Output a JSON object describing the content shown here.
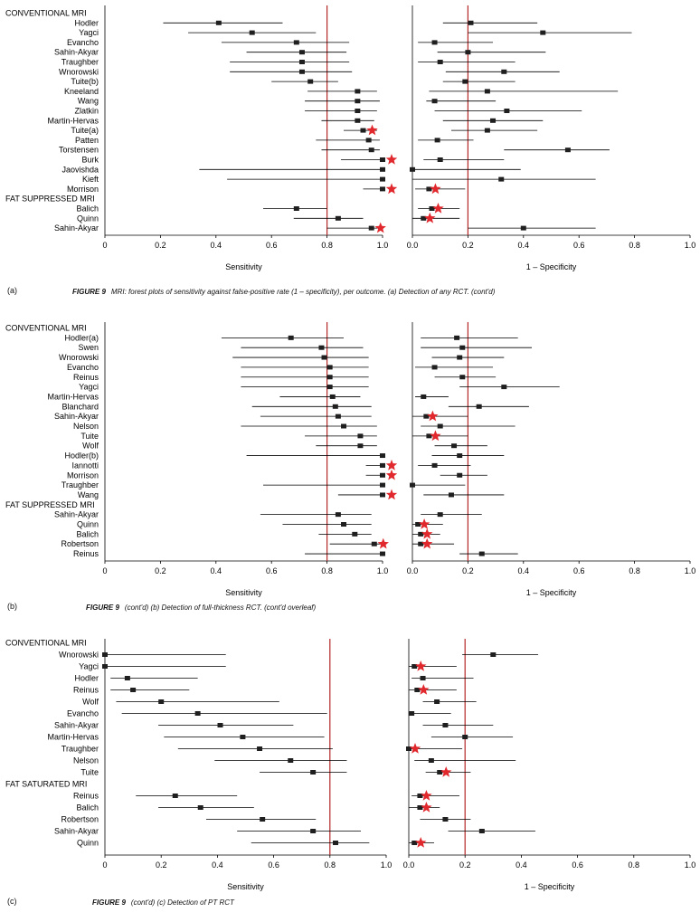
{
  "colors": {
    "reference_line": "#b42828",
    "star": "#e0282d",
    "marker": "#1f1f1f",
    "ci": "#000000"
  },
  "panels": [
    {
      "label": "(a)",
      "figure": "FIGURE 9",
      "caption": "MRI: forest plots of sensitivity against false-positive rate (1 – specificity), per outcome. (a) Detection of any RCT. (cont'd)",
      "chart_data": {
        "type": "forest",
        "left_axis": {
          "label": "Sensitivity",
          "xlim": [
            0,
            1.0
          ],
          "ticks": [
            "0",
            "0.2",
            "0.4",
            "0.6",
            "0.8",
            "1.0"
          ],
          "reference_line": 0.8
        },
        "right_axis": {
          "label": "1 – Specificity",
          "xlim": [
            0,
            1.0
          ],
          "ticks": [
            "0.0",
            "0.2",
            "0.4",
            "0.6",
            "0.8",
            "1.0"
          ],
          "reference_line": 0.2
        },
        "rows": [
          {
            "label": "CONVENTIONAL MRI",
            "header": true
          },
          {
            "label": "Hodler",
            "sens": [
              0.41,
              0.21,
              0.64
            ],
            "fpr": [
              0.21,
              0.11,
              0.45
            ]
          },
          {
            "label": "Yagci",
            "sens": [
              0.53,
              0.3,
              0.76
            ],
            "fpr": [
              0.47,
              0.2,
              0.79
            ]
          },
          {
            "label": "Evancho",
            "sens": [
              0.69,
              0.42,
              0.88
            ],
            "fpr": [
              0.08,
              0.02,
              0.29
            ]
          },
          {
            "label": "Sahin-Akyar",
            "sens": [
              0.71,
              0.51,
              0.87
            ],
            "fpr": [
              0.2,
              0.09,
              0.48
            ]
          },
          {
            "label": "Traughber",
            "sens": [
              0.71,
              0.45,
              0.88
            ],
            "fpr": [
              0.1,
              0.02,
              0.37
            ]
          },
          {
            "label": "Wnorowski",
            "sens": [
              0.71,
              0.45,
              0.89
            ],
            "fpr": [
              0.33,
              0.12,
              0.53
            ]
          },
          {
            "label": "Tuite(b)",
            "sens": [
              0.74,
              0.6,
              0.84
            ],
            "fpr": [
              0.19,
              0.11,
              0.37
            ]
          },
          {
            "label": "Kneeland",
            "sens": [
              0.91,
              0.73,
              0.98
            ],
            "fpr": [
              0.27,
              0.06,
              0.74
            ]
          },
          {
            "label": "Wang",
            "sens": [
              0.91,
              0.72,
              0.99
            ],
            "fpr": [
              0.08,
              0.05,
              0.3
            ]
          },
          {
            "label": "Zlatkin",
            "sens": [
              0.91,
              0.72,
              0.98
            ],
            "fpr": [
              0.34,
              0.08,
              0.61
            ]
          },
          {
            "label": "Martin-Hervas",
            "sens": [
              0.91,
              0.78,
              0.97
            ],
            "fpr": [
              0.29,
              0.11,
              0.47
            ]
          },
          {
            "label": "Tuite(a)",
            "sens": [
              0.93,
              0.86,
              0.98
            ],
            "fpr": [
              0.27,
              0.14,
              0.45
            ],
            "star": "sens"
          },
          {
            "label": "Patten",
            "sens": [
              0.95,
              0.76,
              0.99
            ],
            "fpr": [
              0.09,
              0.02,
              0.22
            ]
          },
          {
            "label": "Torstensen",
            "sens": [
              0.96,
              0.78,
              0.99
            ],
            "fpr": [
              0.56,
              0.33,
              0.71
            ]
          },
          {
            "label": "Burk",
            "sens": [
              1.0,
              0.85,
              1.0
            ],
            "fpr": [
              0.1,
              0.04,
              0.33
            ],
            "star": "sens"
          },
          {
            "label": "Jaovishda",
            "sens": [
              1.0,
              0.34,
              1.0
            ],
            "fpr": [
              0.0,
              0.0,
              0.39
            ]
          },
          {
            "label": "Kieft",
            "sens": [
              1.0,
              0.44,
              1.0
            ],
            "fpr": [
              0.32,
              0.0,
              0.66
            ]
          },
          {
            "label": "Morrison",
            "sens": [
              1.0,
              0.93,
              1.0
            ],
            "fpr": [
              0.06,
              0.01,
              0.19
            ],
            "star": "both"
          },
          {
            "label": "FAT SUPPRESSED MRI",
            "header": true
          },
          {
            "label": "Balich",
            "sens": [
              0.69,
              0.57,
              0.8
            ],
            "fpr": [
              0.07,
              0.02,
              0.17
            ],
            "star": "fpr"
          },
          {
            "label": "Quinn",
            "sens": [
              0.84,
              0.68,
              0.93
            ],
            "fpr": [
              0.04,
              0.0,
              0.17
            ],
            "star": "fpr"
          },
          {
            "label": "Sahin-Akyar",
            "sens": [
              0.96,
              0.8,
              0.99
            ],
            "fpr": [
              0.4,
              0.2,
              0.66
            ],
            "star": "sens"
          }
        ]
      }
    },
    {
      "label": "(b)",
      "figure": "FIGURE 9",
      "caption": "(cont'd)  (b) Detection of full-thickness RCT. (cont'd overleaf)",
      "chart_data": {
        "type": "forest",
        "left_axis": {
          "label": "Sensitivity",
          "xlim": [
            0,
            1.0
          ],
          "ticks": [
            "0",
            "0.2",
            "0.4",
            "0.6",
            "0.8",
            "1.0"
          ],
          "reference_line": 0.8
        },
        "right_axis": {
          "label": "1 – Specificity",
          "xlim": [
            0,
            1.0
          ],
          "ticks": [
            "0.0",
            "0.2",
            "0.4",
            "0.6",
            "0.8",
            "1.0"
          ],
          "reference_line": 0.2
        },
        "rows": [
          {
            "label": "CONVENTIONAL MRI",
            "header": true
          },
          {
            "label": "Hodler(a)",
            "sens": [
              0.67,
              0.42,
              0.86
            ],
            "fpr": [
              0.16,
              0.03,
              0.38
            ]
          },
          {
            "label": "Swen",
            "sens": [
              0.78,
              0.49,
              0.93
            ],
            "fpr": [
              0.18,
              0.03,
              0.43
            ]
          },
          {
            "label": "Wnorowski",
            "sens": [
              0.79,
              0.46,
              0.95
            ],
            "fpr": [
              0.17,
              0.07,
              0.33
            ]
          },
          {
            "label": "Evancho",
            "sens": [
              0.81,
              0.49,
              0.95
            ],
            "fpr": [
              0.08,
              0.01,
              0.29
            ]
          },
          {
            "label": "Reinus",
            "sens": [
              0.81,
              0.49,
              0.95
            ],
            "fpr": [
              0.18,
              0.08,
              0.3
            ]
          },
          {
            "label": "Yagci",
            "sens": [
              0.81,
              0.49,
              0.95
            ],
            "fpr": [
              0.33,
              0.17,
              0.53
            ]
          },
          {
            "label": "Martin-Hervas",
            "sens": [
              0.82,
              0.63,
              0.92
            ],
            "fpr": [
              0.04,
              0.01,
              0.13
            ]
          },
          {
            "label": "Blanchard",
            "sens": [
              0.83,
              0.53,
              0.96
            ],
            "fpr": [
              0.24,
              0.13,
              0.42
            ]
          },
          {
            "label": "Sahin-Akyar",
            "sens": [
              0.84,
              0.56,
              0.96
            ],
            "fpr": [
              0.05,
              0.0,
              0.2
            ],
            "star": "fpr"
          },
          {
            "label": "Nelson",
            "sens": [
              0.86,
              0.49,
              0.98
            ],
            "fpr": [
              0.1,
              0.03,
              0.37
            ]
          },
          {
            "label": "Tuite",
            "sens": [
              0.92,
              0.72,
              0.98
            ],
            "fpr": [
              0.06,
              0.0,
              0.2
            ],
            "star": "fpr"
          },
          {
            "label": "Wolf",
            "sens": [
              0.92,
              0.76,
              0.98
            ],
            "fpr": [
              0.15,
              0.08,
              0.27
            ]
          },
          {
            "label": "Hodler(b)",
            "sens": [
              1.0,
              0.51,
              1.0
            ],
            "fpr": [
              0.17,
              0.07,
              0.33
            ]
          },
          {
            "label": "Iannotti",
            "sens": [
              1.0,
              0.94,
              1.0
            ],
            "fpr": [
              0.08,
              0.02,
              0.21
            ],
            "star": "sens"
          },
          {
            "label": "Morrison",
            "sens": [
              1.0,
              0.94,
              1.0
            ],
            "fpr": [
              0.17,
              0.1,
              0.27
            ],
            "star": "sens"
          },
          {
            "label": "Traughber",
            "sens": [
              1.0,
              0.57,
              1.0
            ],
            "fpr": [
              0.0,
              0.0,
              0.19
            ]
          },
          {
            "label": "Wang",
            "sens": [
              1.0,
              0.84,
              1.0
            ],
            "fpr": [
              0.14,
              0.04,
              0.33
            ],
            "star": "sens"
          },
          {
            "label": "FAT SUPPRESSED MRI",
            "header": true
          },
          {
            "label": "Sahin-Akyar",
            "sens": [
              0.84,
              0.56,
              0.96
            ],
            "fpr": [
              0.1,
              0.03,
              0.25
            ]
          },
          {
            "label": "Quinn",
            "sens": [
              0.86,
              0.64,
              0.96
            ],
            "fpr": [
              0.02,
              0.0,
              0.11
            ],
            "star": "fpr"
          },
          {
            "label": "Balich",
            "sens": [
              0.9,
              0.77,
              0.96
            ],
            "fpr": [
              0.03,
              0.0,
              0.1
            ],
            "star": "fpr"
          },
          {
            "label": "Robertson",
            "sens": [
              0.97,
              0.81,
              1.0
            ],
            "fpr": [
              0.03,
              0.0,
              0.15
            ],
            "star": "both"
          },
          {
            "label": "Reinus",
            "sens": [
              1.0,
              0.72,
              1.0
            ],
            "fpr": [
              0.25,
              0.17,
              0.38
            ]
          }
        ]
      }
    },
    {
      "label": "(c)",
      "figure": "FIGURE 9",
      "caption": "(cont'd)  (c) Detection of PT RCT",
      "chart_data": {
        "type": "forest",
        "left_axis": {
          "label": "Sensitivity",
          "xlim": [
            0,
            1.0
          ],
          "ticks": [
            "0",
            "0.2",
            "0.4",
            "0.6",
            "0.8",
            "1.0"
          ],
          "reference_line": 0.8
        },
        "right_axis": {
          "label": "1 – Specificity",
          "xlim": [
            0,
            1.0
          ],
          "ticks": [
            "0.0",
            "0.2",
            "0.4",
            "0.6",
            "0.8",
            "1.0"
          ],
          "reference_line": 0.2
        },
        "rows": [
          {
            "label": "CONVENTIONAL MRI",
            "header": true
          },
          {
            "label": "Wnorowski",
            "sens": [
              0.0,
              0.0,
              0.43
            ],
            "fpr": [
              0.3,
              0.19,
              0.46
            ]
          },
          {
            "label": "Yagci",
            "sens": [
              0.0,
              0.0,
              0.43
            ],
            "fpr": [
              0.02,
              0.0,
              0.17
            ],
            "star": "fpr"
          },
          {
            "label": "Hodler",
            "sens": [
              0.08,
              0.02,
              0.33
            ],
            "fpr": [
              0.05,
              0.01,
              0.23
            ]
          },
          {
            "label": "Reinus",
            "sens": [
              0.1,
              0.02,
              0.3
            ],
            "fpr": [
              0.03,
              0.0,
              0.17
            ],
            "star": "fpr"
          },
          {
            "label": "Wolf",
            "sens": [
              0.2,
              0.04,
              0.62
            ],
            "fpr": [
              0.1,
              0.05,
              0.24
            ]
          },
          {
            "label": "Evancho",
            "sens": [
              0.33,
              0.06,
              0.79
            ],
            "fpr": [
              0.01,
              0.0,
              0.15
            ]
          },
          {
            "label": "Sahin-Akyar",
            "sens": [
              0.41,
              0.19,
              0.67
            ],
            "fpr": [
              0.13,
              0.05,
              0.3
            ]
          },
          {
            "label": "Martin-Hervas",
            "sens": [
              0.49,
              0.21,
              0.78
            ],
            "fpr": [
              0.2,
              0.08,
              0.37
            ]
          },
          {
            "label": "Traughber",
            "sens": [
              0.55,
              0.26,
              0.81
            ],
            "fpr": [
              0.0,
              0.0,
              0.19
            ],
            "star": "fpr"
          },
          {
            "label": "Nelson",
            "sens": [
              0.66,
              0.39,
              0.86
            ],
            "fpr": [
              0.08,
              0.02,
              0.38
            ]
          },
          {
            "label": "Tuite",
            "sens": [
              0.74,
              0.55,
              0.86
            ],
            "fpr": [
              0.11,
              0.06,
              0.22
            ],
            "star": "fpr"
          },
          {
            "label": "FAT SATURATED MRI",
            "header": true
          },
          {
            "label": "Reinus",
            "sens": [
              0.25,
              0.11,
              0.47
            ],
            "fpr": [
              0.04,
              0.01,
              0.18
            ],
            "star": "fpr"
          },
          {
            "label": "Balich",
            "sens": [
              0.34,
              0.19,
              0.53
            ],
            "fpr": [
              0.04,
              0.0,
              0.11
            ],
            "star": "fpr"
          },
          {
            "label": "Robertson",
            "sens": [
              0.56,
              0.36,
              0.75
            ],
            "fpr": [
              0.13,
              0.04,
              0.22
            ]
          },
          {
            "label": "Sahin-Akyar",
            "sens": [
              0.74,
              0.47,
              0.91
            ],
            "fpr": [
              0.26,
              0.14,
              0.45
            ]
          },
          {
            "label": "Quinn",
            "sens": [
              0.82,
              0.52,
              0.94
            ],
            "fpr": [
              0.02,
              0.0,
              0.09
            ],
            "star": "fpr"
          }
        ]
      }
    }
  ]
}
